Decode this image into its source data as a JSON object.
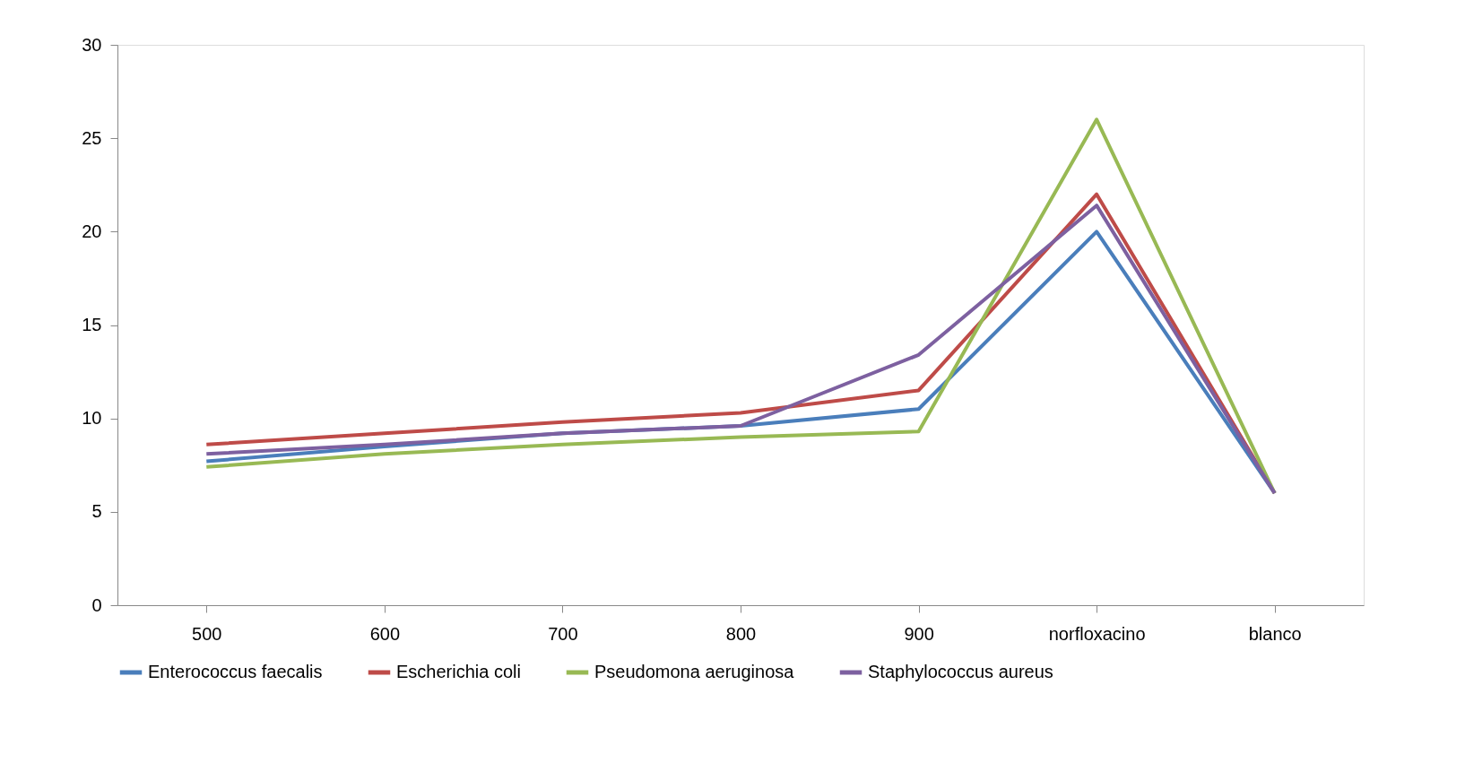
{
  "chart_data": {
    "type": "line",
    "categories": [
      "500",
      "600",
      "700",
      "800",
      "900",
      "norfloxacino",
      "blanco"
    ],
    "series": [
      {
        "name": "Enterococcus faecalis",
        "color": "#4a7ebb",
        "values": [
          7.7,
          8.5,
          9.2,
          9.6,
          10.5,
          20,
          6
        ]
      },
      {
        "name": "Escherichia coli",
        "color": "#be4b48",
        "values": [
          8.6,
          9.2,
          9.8,
          10.3,
          11.5,
          22,
          6
        ]
      },
      {
        "name": "Pseudomona aeruginosa",
        "color": "#98b954",
        "values": [
          7.4,
          8.1,
          8.6,
          9.0,
          9.3,
          26,
          6
        ]
      },
      {
        "name": "Staphylococcus aureus",
        "color": "#7d60a0",
        "values": [
          8.1,
          8.6,
          9.2,
          9.6,
          13.4,
          21.4,
          6
        ]
      }
    ],
    "ylim": [
      0,
      30
    ],
    "yticks": [
      0,
      5,
      10,
      15,
      20,
      25,
      30
    ],
    "grid": false,
    "legend": "bottom",
    "marker": "none",
    "line_style": "solid"
  }
}
